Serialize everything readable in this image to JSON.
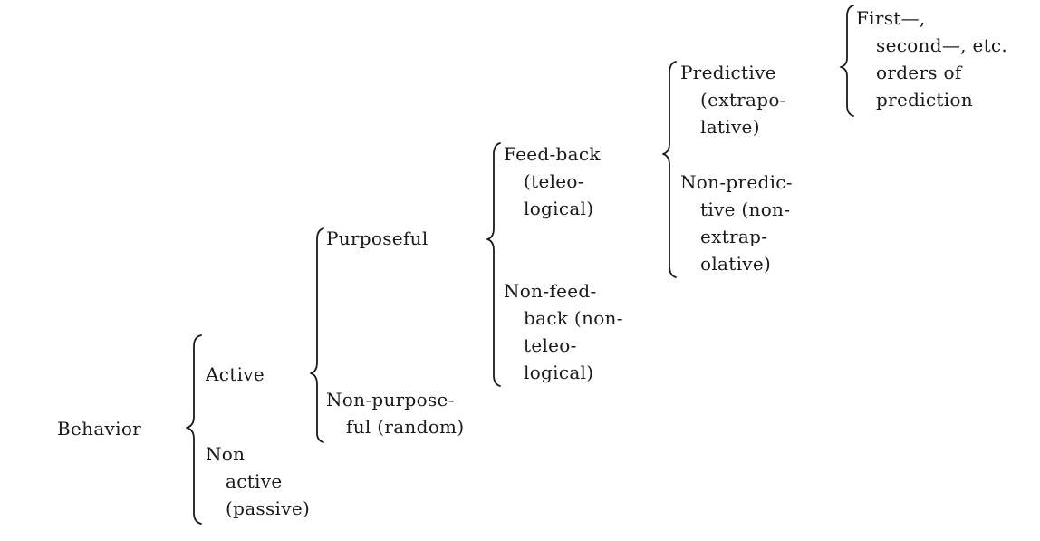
{
  "diagram": {
    "root": "Behavior",
    "level1": {
      "active": "Active",
      "non_active": [
        "Non",
        "active",
        "(passive)"
      ]
    },
    "level2": {
      "purposeful": "Purposeful",
      "non_purposeful": [
        "Non-purpose-",
        "ful (random)"
      ]
    },
    "level3": {
      "feedback": [
        "Feed-back",
        "(teleo-",
        "logical)"
      ],
      "non_feedback": [
        "Non-feed-",
        "back (non-",
        "teleo-",
        "logical)"
      ]
    },
    "level4": {
      "predictive": [
        "Predictive",
        "(extrapo-",
        "lative)"
      ],
      "non_predictive": [
        "Non-predic-",
        "tive (non-",
        "extrap-",
        "olative)"
      ]
    },
    "level5": {
      "orders": [
        "First—,",
        "second—, etc.",
        "orders of",
        "prediction"
      ]
    }
  }
}
